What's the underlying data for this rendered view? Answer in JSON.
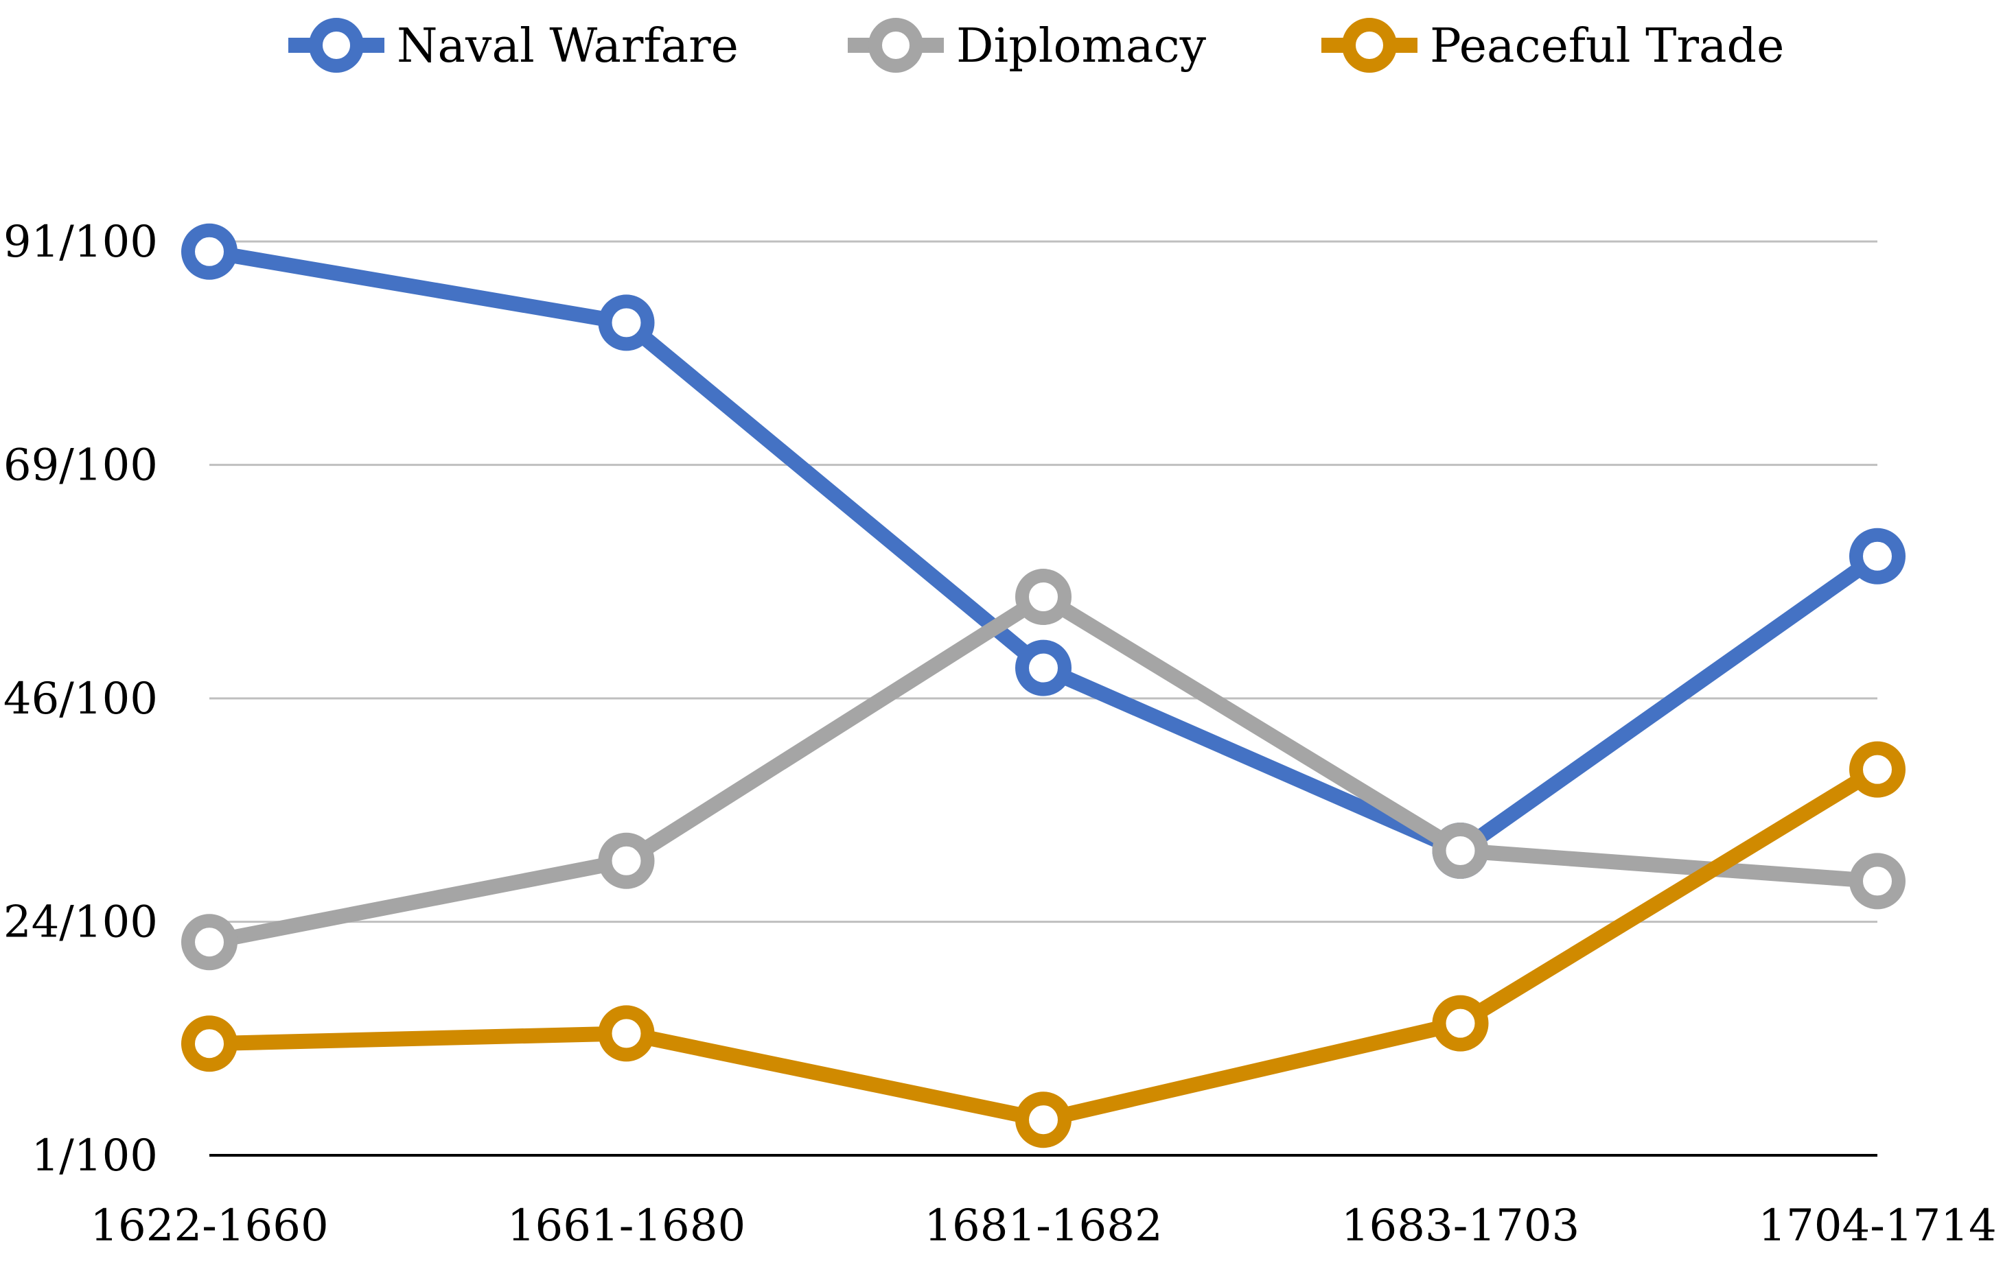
{
  "chart_data": {
    "type": "line",
    "title": "",
    "xlabel": "",
    "ylabel": "",
    "categories": [
      "1622-1660",
      "1661-1680",
      "1681-1682",
      "1683-1703",
      "1704-1714"
    ],
    "y_ticks": [
      {
        "value": 0.01,
        "label": "1/100"
      },
      {
        "value": 0.24,
        "label": "24/100"
      },
      {
        "value": 0.46,
        "label": "46/100"
      },
      {
        "value": 0.69,
        "label": "69/100"
      },
      {
        "value": 0.91,
        "label": "91/100"
      }
    ],
    "ylim": [
      0.01,
      0.91
    ],
    "grid": true,
    "legend_position": "top",
    "series": [
      {
        "name": "Naval Warfare",
        "color": "#4472C4",
        "values": [
          0.9,
          0.83,
          0.49,
          0.31,
          0.6
        ]
      },
      {
        "name": "Diplomacy",
        "color": "#A5A5A5",
        "values": [
          0.22,
          0.3,
          0.56,
          0.31,
          0.28
        ]
      },
      {
        "name": "Peaceful Trade",
        "color": "#D08A00",
        "values": [
          0.12,
          0.13,
          0.045,
          0.14,
          0.39
        ]
      }
    ]
  }
}
